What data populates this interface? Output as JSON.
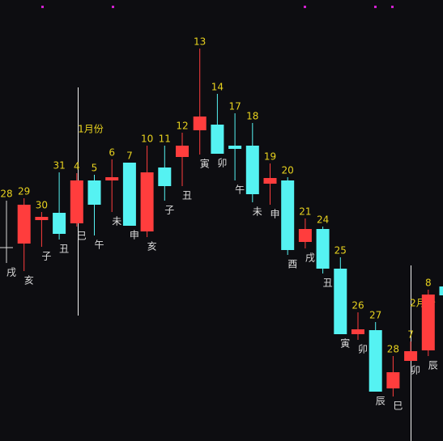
{
  "chart_data": {
    "type": "candlestick",
    "up_color": "#ff3d3d",
    "down_color": "#55f2f2",
    "flat_color": "#d8d8d8",
    "ylim": [
      0,
      545
    ],
    "day_labels": [
      "28",
      "29",
      "30",
      "31",
      "4",
      "5",
      "6",
      "7",
      "10",
      "11",
      "12",
      "13",
      "14",
      "17",
      "18",
      "19",
      "20",
      "21",
      "24",
      "25",
      "26",
      "27",
      "28",
      "7",
      "8",
      null
    ],
    "branch_labels": [
      "戌",
      "亥",
      "子",
      "丑",
      "巳",
      "午",
      "未",
      "申",
      "亥",
      "子",
      "丑",
      "寅",
      "卯",
      "午",
      "未",
      "申",
      "酉",
      "戌",
      "丑",
      "寅",
      "卯",
      "辰",
      "巳",
      "卯",
      "辰",
      null
    ],
    "month_labels": [
      "1月份",
      "2月份"
    ],
    "open": [
      239,
      244,
      273,
      282,
      269,
      322,
      322,
      344,
      259,
      338,
      351,
      384,
      391,
      365,
      365,
      318,
      322,
      246,
      262,
      213,
      132,
      137,
      65,
      99,
      112,
      191
    ],
    "high": [
      297,
      300,
      283,
      332,
      331,
      329,
      348,
      344,
      365,
      365,
      381,
      485,
      429,
      405,
      393,
      343,
      326,
      275,
      265,
      227,
      159,
      147,
      105,
      123,
      187,
      191
    ],
    "low": [
      220,
      210,
      240,
      249,
      265,
      254,
      283,
      266,
      252,
      297,
      315,
      354,
      355,
      322,
      295,
      292,
      230,
      238,
      207,
      132,
      125,
      61,
      55,
      99,
      105,
      180
    ],
    "close": [
      239,
      292,
      277,
      256,
      322,
      292,
      326,
      266,
      332,
      315,
      365,
      401,
      355,
      361,
      305,
      325,
      236,
      262,
      213,
      132,
      138,
      61,
      85,
      111,
      181,
      180
    ]
  }
}
